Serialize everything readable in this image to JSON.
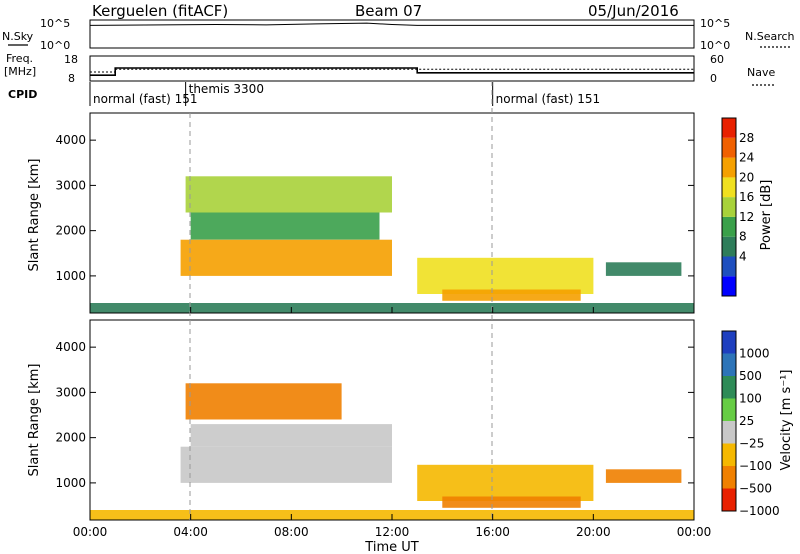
{
  "header": {
    "radar": "Kerguelen (fitACF)",
    "beam": "Beam 07",
    "date": "05/Jun/2016"
  },
  "panels": {
    "nsky_label": "N.Sky",
    "nsearch_label": "N.Search",
    "freq_label": "Freq.",
    "freq_unit": "[MHz]",
    "nave_label": "Nave",
    "cpid_label": "CPID",
    "nsky_ticks": [
      "10^5",
      "10^0"
    ],
    "nsearch_ticks": [
      "10^5",
      "10^0"
    ],
    "freq_ticks": [
      "18",
      "8"
    ],
    "nave_ticks": [
      "60",
      "0"
    ]
  },
  "cpid": {
    "segments": [
      {
        "label": "normal (fast) 151",
        "start_hour": 0,
        "end_hour": 3.8
      },
      {
        "label": "themis 3300",
        "start_hour": 3.8,
        "end_hour": 16.0
      },
      {
        "label": "normal (fast) 151",
        "start_hour": 16.0,
        "end_hour": 24.0
      }
    ]
  },
  "colorbars": {
    "power_label": "Power [dB]",
    "power_ticks": [
      "28",
      "24",
      "20",
      "16",
      "12",
      "8",
      "4"
    ],
    "power_colors": [
      "#0000ff",
      "#1e4fbf",
      "#2e7d5a",
      "#3aa04a",
      "#a8d23a",
      "#f0e020",
      "#f5a000",
      "#f06000",
      "#e82000"
    ],
    "velocity_label": "Velocity [m s⁻¹]",
    "velocity_ticks": [
      "1000",
      "500",
      "100",
      "25",
      "−25",
      "−100",
      "−500",
      "−1000"
    ],
    "velocity_colors": [
      "#1e3fbf",
      "#2d74b8",
      "#2e8b57",
      "#66cc44",
      "#c8c8c8",
      "#f5b800",
      "#f08000",
      "#e82000"
    ]
  },
  "axes": {
    "ylabel": "Slant Range [km]",
    "xlabel": "Time UT",
    "yticks": [
      "4000",
      "3000",
      "2000",
      "1000"
    ],
    "xticks": [
      "00:00",
      "04:00",
      "08:00",
      "12:00",
      "16:00",
      "20:00",
      "00:00"
    ]
  },
  "chart_data": [
    {
      "type": "line",
      "title": "N.Sky / N.Search",
      "x_unit": "hours UT",
      "series": [
        {
          "name": "N.Sky",
          "x": [
            0,
            5,
            7,
            9,
            11,
            12,
            13,
            24
          ],
          "y": [
            20000,
            30000,
            25000,
            40000,
            60000,
            30000,
            20000,
            20000
          ]
        }
      ]
    },
    {
      "type": "line",
      "title": "Freq. / Nave",
      "x_unit": "hours UT",
      "ylim_freq": [
        8,
        18
      ],
      "series": [
        {
          "name": "Freq.",
          "x": [
            0,
            1,
            1,
            13,
            13,
            24
          ],
          "y": [
            10,
            10,
            13,
            13,
            11,
            11
          ]
        },
        {
          "name": "Nave",
          "x": [
            0,
            1,
            1,
            24
          ],
          "y": [
            20,
            20,
            27,
            27
          ]
        }
      ]
    },
    {
      "type": "heatmap",
      "title": "Power [dB]",
      "x_unit": "hours UT",
      "y_unit": "km",
      "xlim": [
        0,
        24
      ],
      "ylim": [
        180,
        4600
      ],
      "regions": [
        {
          "t0": 3.6,
          "t1": 12.0,
          "r0": 1000,
          "r1": 1800,
          "value": 24
        },
        {
          "t0": 3.8,
          "t1": 12.0,
          "r0": 2400,
          "r1": 3200,
          "value": 16
        },
        {
          "t0": 4.0,
          "t1": 11.5,
          "r0": 1800,
          "r1": 2400,
          "value": 12
        },
        {
          "t0": 13.0,
          "t1": 20.0,
          "r0": 600,
          "r1": 1400,
          "value": 20
        },
        {
          "t0": 14.0,
          "t1": 19.5,
          "r0": 450,
          "r1": 700,
          "value": 24
        },
        {
          "t0": 20.5,
          "t1": 23.5,
          "r0": 1000,
          "r1": 1300,
          "value": 8
        },
        {
          "t0": 0.0,
          "t1": 24.0,
          "r0": 180,
          "r1": 400,
          "value": 6
        }
      ]
    },
    {
      "type": "heatmap",
      "title": "Velocity [m s^-1]",
      "x_unit": "hours UT",
      "y_unit": "km",
      "xlim": [
        0,
        24
      ],
      "ylim": [
        180,
        4600
      ],
      "regions": [
        {
          "t0": 3.6,
          "t1": 12.0,
          "r0": 1000,
          "r1": 1800,
          "value": 0
        },
        {
          "t0": 3.8,
          "t1": 10.0,
          "r0": 2400,
          "r1": 3200,
          "value": -200
        },
        {
          "t0": 4.0,
          "t1": 12.0,
          "r0": 1800,
          "r1": 2300,
          "value": 0
        },
        {
          "t0": 13.0,
          "t1": 20.0,
          "r0": 600,
          "r1": 1400,
          "value": -50
        },
        {
          "t0": 14.0,
          "t1": 19.5,
          "r0": 450,
          "r1": 700,
          "value": -150
        },
        {
          "t0": 20.5,
          "t1": 23.5,
          "r0": 1000,
          "r1": 1300,
          "value": -300
        },
        {
          "t0": 0.0,
          "t1": 24.0,
          "r0": 180,
          "r1": 400,
          "value": -100
        }
      ]
    }
  ]
}
